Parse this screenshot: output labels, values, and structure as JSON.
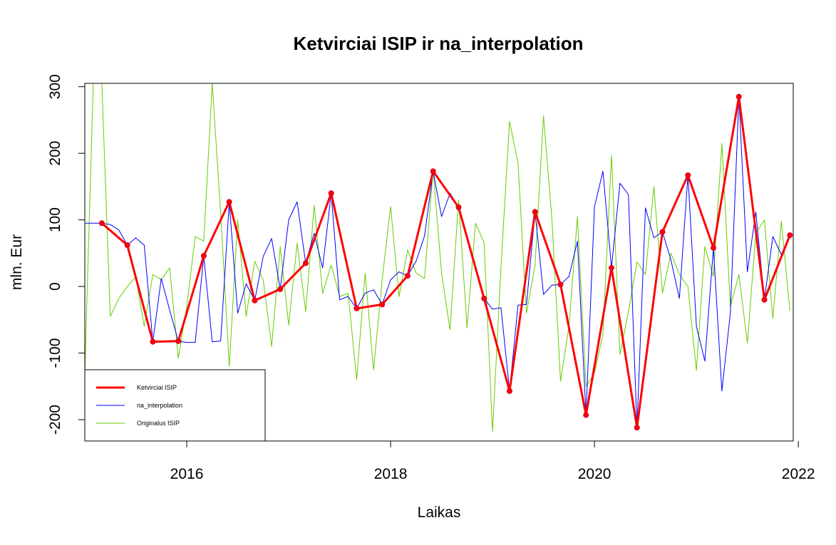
{
  "chart_data": {
    "type": "line",
    "title": "Ketvirciai ISIP ir na_interpolation",
    "xlabel": "Laikas",
    "ylabel": "mln. Eur",
    "xlim": [
      2015.0,
      2021.95
    ],
    "ylim": [
      -232,
      305
    ],
    "xticks": [
      2016,
      2018,
      2020,
      2022
    ],
    "yticks": [
      -200,
      -100,
      0,
      100,
      200,
      300
    ],
    "legend_position": "bottom-left",
    "grid": false,
    "series": [
      {
        "name": "Ketvirciai ISIP",
        "color": "#ff0000",
        "style": "line-with-points",
        "points": [
          [
            2015.167,
            95
          ],
          [
            2015.417,
            62
          ],
          [
            2015.667,
            -83
          ],
          [
            2015.917,
            -82
          ],
          [
            2016.167,
            46
          ],
          [
            2016.417,
            127
          ],
          [
            2016.667,
            -21
          ],
          [
            2016.917,
            -4
          ],
          [
            2017.167,
            35
          ],
          [
            2017.417,
            140
          ],
          [
            2017.667,
            -33
          ],
          [
            2017.917,
            -27
          ],
          [
            2018.167,
            16
          ],
          [
            2018.417,
            173
          ],
          [
            2018.667,
            119
          ],
          [
            2018.917,
            -18
          ],
          [
            2019.167,
            -157
          ],
          [
            2019.417,
            112
          ],
          [
            2019.667,
            3
          ],
          [
            2019.917,
            -193
          ],
          [
            2020.167,
            28
          ],
          [
            2020.417,
            -212
          ],
          [
            2020.667,
            82
          ],
          [
            2020.917,
            167
          ],
          [
            2021.167,
            58
          ],
          [
            2021.417,
            285
          ],
          [
            2021.667,
            -20
          ],
          [
            2021.917,
            77
          ]
        ]
      },
      {
        "name": "na_interpolation",
        "color": "#0000ff",
        "style": "line",
        "points": [
          [
            2015.0,
            95
          ],
          [
            2015.083,
            95
          ],
          [
            2015.167,
            95
          ],
          [
            2015.25,
            93
          ],
          [
            2015.333,
            85
          ],
          [
            2015.417,
            62
          ],
          [
            2015.5,
            73
          ],
          [
            2015.583,
            62
          ],
          [
            2015.667,
            -83
          ],
          [
            2015.75,
            12
          ],
          [
            2015.833,
            -36
          ],
          [
            2015.917,
            -82
          ],
          [
            2016.0,
            -84
          ],
          [
            2016.083,
            -84
          ],
          [
            2016.167,
            46
          ],
          [
            2016.25,
            -83
          ],
          [
            2016.333,
            -82
          ],
          [
            2016.417,
            127
          ],
          [
            2016.5,
            -40
          ],
          [
            2016.583,
            4
          ],
          [
            2016.667,
            -21
          ],
          [
            2016.75,
            45
          ],
          [
            2016.833,
            72
          ],
          [
            2016.917,
            -4
          ],
          [
            2017.0,
            100
          ],
          [
            2017.083,
            127
          ],
          [
            2017.167,
            35
          ],
          [
            2017.25,
            80
          ],
          [
            2017.333,
            28
          ],
          [
            2017.417,
            140
          ],
          [
            2017.5,
            -20
          ],
          [
            2017.583,
            -15
          ],
          [
            2017.667,
            -33
          ],
          [
            2017.75,
            -10
          ],
          [
            2017.833,
            -5
          ],
          [
            2017.917,
            -27
          ],
          [
            2018.0,
            10
          ],
          [
            2018.083,
            22
          ],
          [
            2018.167,
            16
          ],
          [
            2018.25,
            38
          ],
          [
            2018.333,
            76
          ],
          [
            2018.417,
            173
          ],
          [
            2018.5,
            105
          ],
          [
            2018.583,
            140
          ],
          [
            2018.667,
            119
          ],
          [
            2018.75,
            73
          ],
          [
            2018.833,
            30
          ],
          [
            2018.917,
            -18
          ],
          [
            2019.0,
            -34
          ],
          [
            2019.083,
            -32
          ],
          [
            2019.167,
            -157
          ],
          [
            2019.25,
            -28
          ],
          [
            2019.333,
            -27
          ],
          [
            2019.417,
            112
          ],
          [
            2019.5,
            -12
          ],
          [
            2019.583,
            2
          ],
          [
            2019.667,
            3
          ],
          [
            2019.75,
            15
          ],
          [
            2019.833,
            68
          ],
          [
            2019.917,
            -193
          ],
          [
            2020.0,
            120
          ],
          [
            2020.083,
            173
          ],
          [
            2020.167,
            28
          ],
          [
            2020.25,
            155
          ],
          [
            2020.333,
            138
          ],
          [
            2020.417,
            -212
          ],
          [
            2020.5,
            118
          ],
          [
            2020.583,
            73
          ],
          [
            2020.667,
            82
          ],
          [
            2020.75,
            40
          ],
          [
            2020.833,
            -18
          ],
          [
            2020.917,
            167
          ],
          [
            2021.0,
            -60
          ],
          [
            2021.083,
            -112
          ],
          [
            2021.167,
            58
          ],
          [
            2021.25,
            -157
          ],
          [
            2021.333,
            -40
          ],
          [
            2021.417,
            285
          ],
          [
            2021.5,
            22
          ],
          [
            2021.583,
            112
          ],
          [
            2021.667,
            -20
          ],
          [
            2021.75,
            75
          ],
          [
            2021.833,
            48
          ],
          [
            2021.917,
            77
          ]
        ]
      },
      {
        "name": "Originalus ISIP",
        "color": "#66cc00",
        "style": "line",
        "points": [
          [
            2015.0,
            -130
          ],
          [
            2015.083,
            305
          ],
          [
            2015.167,
            305
          ],
          [
            2015.25,
            -45
          ],
          [
            2015.333,
            -18
          ],
          [
            2015.417,
            0
          ],
          [
            2015.5,
            14
          ],
          [
            2015.583,
            -60
          ],
          [
            2015.667,
            18
          ],
          [
            2015.75,
            10
          ],
          [
            2015.833,
            28
          ],
          [
            2015.917,
            -108
          ],
          [
            2016.0,
            -30
          ],
          [
            2016.083,
            75
          ],
          [
            2016.167,
            68
          ],
          [
            2016.25,
            305
          ],
          [
            2016.333,
            110
          ],
          [
            2016.417,
            -120
          ],
          [
            2016.5,
            100
          ],
          [
            2016.583,
            -45
          ],
          [
            2016.667,
            38
          ],
          [
            2016.75,
            10
          ],
          [
            2016.833,
            -90
          ],
          [
            2016.917,
            60
          ],
          [
            2017.0,
            -58
          ],
          [
            2017.083,
            65
          ],
          [
            2017.167,
            -38
          ],
          [
            2017.25,
            122
          ],
          [
            2017.333,
            -10
          ],
          [
            2017.417,
            32
          ],
          [
            2017.5,
            -15
          ],
          [
            2017.583,
            -10
          ],
          [
            2017.667,
            -140
          ],
          [
            2017.75,
            20
          ],
          [
            2017.833,
            -125
          ],
          [
            2017.917,
            10
          ],
          [
            2018.0,
            120
          ],
          [
            2018.083,
            -15
          ],
          [
            2018.167,
            55
          ],
          [
            2018.25,
            20
          ],
          [
            2018.333,
            12
          ],
          [
            2018.417,
            175
          ],
          [
            2018.5,
            20
          ],
          [
            2018.583,
            -65
          ],
          [
            2018.667,
            130
          ],
          [
            2018.75,
            -62
          ],
          [
            2018.833,
            95
          ],
          [
            2018.917,
            66
          ],
          [
            2019.0,
            -218
          ],
          [
            2019.083,
            30
          ],
          [
            2019.167,
            248
          ],
          [
            2019.25,
            185
          ],
          [
            2019.333,
            -40
          ],
          [
            2019.417,
            32
          ],
          [
            2019.5,
            256
          ],
          [
            2019.583,
            100
          ],
          [
            2019.667,
            -142
          ],
          [
            2019.75,
            -60
          ],
          [
            2019.833,
            105
          ],
          [
            2019.917,
            -150
          ],
          [
            2020.0,
            -130
          ],
          [
            2020.083,
            -72
          ],
          [
            2020.167,
            197
          ],
          [
            2020.25,
            -102
          ],
          [
            2020.333,
            -38
          ],
          [
            2020.417,
            37
          ],
          [
            2020.5,
            18
          ],
          [
            2020.583,
            150
          ],
          [
            2020.667,
            -10
          ],
          [
            2020.75,
            50
          ],
          [
            2020.833,
            18
          ],
          [
            2020.917,
            0
          ],
          [
            2021.0,
            -126
          ],
          [
            2021.083,
            60
          ],
          [
            2021.167,
            15
          ],
          [
            2021.25,
            215
          ],
          [
            2021.333,
            -30
          ],
          [
            2021.417,
            18
          ],
          [
            2021.5,
            -85
          ],
          [
            2021.583,
            80
          ],
          [
            2021.667,
            100
          ],
          [
            2021.75,
            -48
          ],
          [
            2021.833,
            98
          ],
          [
            2021.917,
            -36
          ]
        ]
      }
    ]
  }
}
